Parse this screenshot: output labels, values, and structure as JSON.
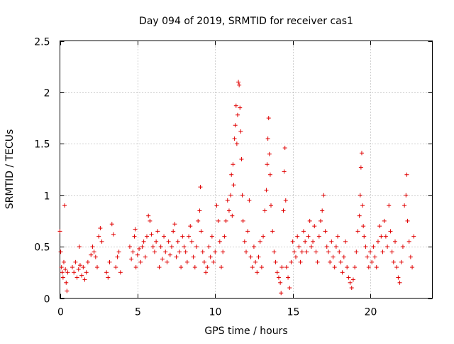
{
  "chart_data": {
    "type": "scatter",
    "title": "Day 094 of 2019, SRMTID for receiver cas1",
    "xlabel": "GPS time / hours",
    "ylabel": "SRMTID / TECUs",
    "xlim": [
      0,
      24
    ],
    "ylim": [
      0,
      2.5
    ],
    "xticks": [
      0,
      5,
      10,
      15,
      20
    ],
    "xtick_labels": [
      "0",
      "5",
      "10",
      "15",
      "20"
    ],
    "yticks": [
      0,
      0.5,
      1,
      1.5,
      2,
      2.5
    ],
    "ytick_labels": [
      "0",
      "0.5",
      "1",
      "1.5",
      "2",
      "2.5"
    ],
    "grid": true,
    "marker": "+",
    "marker_color": "#e00000",
    "series": [
      {
        "name": "SRMTID",
        "points": [
          [
            0.0,
            0.65
          ],
          [
            0.05,
            0.45
          ],
          [
            0.1,
            0.3
          ],
          [
            0.15,
            0.25
          ],
          [
            0.2,
            0.2
          ],
          [
            0.25,
            0.35
          ],
          [
            0.3,
            0.9
          ],
          [
            0.35,
            0.28
          ],
          [
            0.4,
            0.15
          ],
          [
            0.45,
            0.07
          ],
          [
            0.5,
            0.25
          ],
          [
            0.8,
            0.3
          ],
          [
            0.9,
            0.25
          ],
          [
            1.0,
            0.35
          ],
          [
            1.1,
            0.2
          ],
          [
            1.2,
            0.28
          ],
          [
            1.25,
            0.5
          ],
          [
            1.3,
            0.32
          ],
          [
            1.4,
            0.22
          ],
          [
            1.5,
            0.3
          ],
          [
            1.6,
            0.18
          ],
          [
            1.7,
            0.25
          ],
          [
            1.8,
            0.35
          ],
          [
            2.0,
            0.42
          ],
          [
            2.1,
            0.5
          ],
          [
            2.2,
            0.45
          ],
          [
            2.3,
            0.4
          ],
          [
            2.4,
            0.3
          ],
          [
            2.5,
            0.6
          ],
          [
            2.6,
            0.68
          ],
          [
            2.7,
            0.55
          ],
          [
            3.0,
            0.25
          ],
          [
            3.1,
            0.2
          ],
          [
            3.2,
            0.35
          ],
          [
            3.35,
            0.72
          ],
          [
            3.45,
            0.62
          ],
          [
            3.6,
            0.3
          ],
          [
            3.7,
            0.4
          ],
          [
            3.8,
            0.45
          ],
          [
            3.9,
            0.25
          ],
          [
            4.5,
            0.5
          ],
          [
            4.6,
            0.38
          ],
          [
            4.7,
            0.45
          ],
          [
            4.8,
            0.6
          ],
          [
            4.85,
            0.67
          ],
          [
            4.9,
            0.3
          ],
          [
            5.0,
            0.42
          ],
          [
            5.1,
            0.48
          ],
          [
            5.2,
            0.35
          ],
          [
            5.3,
            0.5
          ],
          [
            5.4,
            0.55
          ],
          [
            5.5,
            0.4
          ],
          [
            5.6,
            0.6
          ],
          [
            5.7,
            0.8
          ],
          [
            5.8,
            0.75
          ],
          [
            5.9,
            0.62
          ],
          [
            6.0,
            0.5
          ],
          [
            6.1,
            0.45
          ],
          [
            6.2,
            0.55
          ],
          [
            6.3,
            0.65
          ],
          [
            6.4,
            0.3
          ],
          [
            6.5,
            0.5
          ],
          [
            6.6,
            0.38
          ],
          [
            6.7,
            0.6
          ],
          [
            6.8,
            0.45
          ],
          [
            6.9,
            0.35
          ],
          [
            7.0,
            0.55
          ],
          [
            7.1,
            0.42
          ],
          [
            7.2,
            0.5
          ],
          [
            7.3,
            0.65
          ],
          [
            7.4,
            0.72
          ],
          [
            7.5,
            0.4
          ],
          [
            7.6,
            0.55
          ],
          [
            7.7,
            0.45
          ],
          [
            7.8,
            0.3
          ],
          [
            7.9,
            0.6
          ],
          [
            8.0,
            0.5
          ],
          [
            8.1,
            0.45
          ],
          [
            8.2,
            0.35
          ],
          [
            8.3,
            0.6
          ],
          [
            8.4,
            0.7
          ],
          [
            8.5,
            0.55
          ],
          [
            8.6,
            0.4
          ],
          [
            8.7,
            0.3
          ],
          [
            8.8,
            0.5
          ],
          [
            8.9,
            0.75
          ],
          [
            9.0,
            0.85
          ],
          [
            9.05,
            1.08
          ],
          [
            9.1,
            0.65
          ],
          [
            9.2,
            0.45
          ],
          [
            9.3,
            0.35
          ],
          [
            9.4,
            0.25
          ],
          [
            9.5,
            0.3
          ],
          [
            9.6,
            0.5
          ],
          [
            9.7,
            0.4
          ],
          [
            9.8,
            0.6
          ],
          [
            9.9,
            0.35
          ],
          [
            10.0,
            0.45
          ],
          [
            10.1,
            0.9
          ],
          [
            10.2,
            0.75
          ],
          [
            10.3,
            0.55
          ],
          [
            10.4,
            0.3
          ],
          [
            10.5,
            0.45
          ],
          [
            10.6,
            0.6
          ],
          [
            10.7,
            0.75
          ],
          [
            10.8,
            0.95
          ],
          [
            10.9,
            0.85
          ],
          [
            11.0,
            1.0
          ],
          [
            11.05,
            1.2
          ],
          [
            11.1,
            0.8
          ],
          [
            11.15,
            1.3
          ],
          [
            11.2,
            1.1
          ],
          [
            11.25,
            1.55
          ],
          [
            11.3,
            1.68
          ],
          [
            11.35,
            1.87
          ],
          [
            11.4,
            1.5
          ],
          [
            11.45,
            1.78
          ],
          [
            11.5,
            2.1
          ],
          [
            11.55,
            2.07
          ],
          [
            11.6,
            1.85
          ],
          [
            11.65,
            1.62
          ],
          [
            11.7,
            1.35
          ],
          [
            11.75,
            1.0
          ],
          [
            11.8,
            0.75
          ],
          [
            11.9,
            0.55
          ],
          [
            12.0,
            0.45
          ],
          [
            12.1,
            0.65
          ],
          [
            12.2,
            0.95
          ],
          [
            12.3,
            0.4
          ],
          [
            12.4,
            0.3
          ],
          [
            12.5,
            0.5
          ],
          [
            12.6,
            0.35
          ],
          [
            12.7,
            0.25
          ],
          [
            12.8,
            0.4
          ],
          [
            12.9,
            0.55
          ],
          [
            13.0,
            0.3
          ],
          [
            13.1,
            0.6
          ],
          [
            13.2,
            0.85
          ],
          [
            13.3,
            1.05
          ],
          [
            13.35,
            1.3
          ],
          [
            13.4,
            1.55
          ],
          [
            13.45,
            1.75
          ],
          [
            13.5,
            1.4
          ],
          [
            13.55,
            1.2
          ],
          [
            13.6,
            0.9
          ],
          [
            13.7,
            0.65
          ],
          [
            13.8,
            0.45
          ],
          [
            13.9,
            0.35
          ],
          [
            14.0,
            0.25
          ],
          [
            14.1,
            0.2
          ],
          [
            14.2,
            0.15
          ],
          [
            14.25,
            0.05
          ],
          [
            14.3,
            0.3
          ],
          [
            14.4,
            0.85
          ],
          [
            14.45,
            1.23
          ],
          [
            14.5,
            1.46
          ],
          [
            14.55,
            0.95
          ],
          [
            14.6,
            0.3
          ],
          [
            14.7,
            0.2
          ],
          [
            14.8,
            0.1
          ],
          [
            14.9,
            0.35
          ],
          [
            15.0,
            0.55
          ],
          [
            15.1,
            0.45
          ],
          [
            15.2,
            0.4
          ],
          [
            15.3,
            0.6
          ],
          [
            15.4,
            0.5
          ],
          [
            15.5,
            0.35
          ],
          [
            15.6,
            0.45
          ],
          [
            15.7,
            0.65
          ],
          [
            15.8,
            0.55
          ],
          [
            15.9,
            0.45
          ],
          [
            16.0,
            0.6
          ],
          [
            16.1,
            0.75
          ],
          [
            16.2,
            0.5
          ],
          [
            16.3,
            0.55
          ],
          [
            16.4,
            0.7
          ],
          [
            16.5,
            0.45
          ],
          [
            16.6,
            0.35
          ],
          [
            16.7,
            0.6
          ],
          [
            16.8,
            0.75
          ],
          [
            16.9,
            0.85
          ],
          [
            17.0,
            1.0
          ],
          [
            17.1,
            0.65
          ],
          [
            17.2,
            0.5
          ],
          [
            17.3,
            0.45
          ],
          [
            17.4,
            0.35
          ],
          [
            17.5,
            0.55
          ],
          [
            17.6,
            0.4
          ],
          [
            17.7,
            0.3
          ],
          [
            17.8,
            0.5
          ],
          [
            17.9,
            0.6
          ],
          [
            18.0,
            0.45
          ],
          [
            18.1,
            0.35
          ],
          [
            18.2,
            0.25
          ],
          [
            18.3,
            0.4
          ],
          [
            18.4,
            0.55
          ],
          [
            18.5,
            0.3
          ],
          [
            18.6,
            0.2
          ],
          [
            18.7,
            0.15
          ],
          [
            18.8,
            0.1
          ],
          [
            18.9,
            0.18
          ],
          [
            19.0,
            0.3
          ],
          [
            19.1,
            0.45
          ],
          [
            19.2,
            0.65
          ],
          [
            19.3,
            0.8
          ],
          [
            19.35,
            1.0
          ],
          [
            19.4,
            1.27
          ],
          [
            19.45,
            1.41
          ],
          [
            19.5,
            0.9
          ],
          [
            19.55,
            0.7
          ],
          [
            19.6,
            0.6
          ],
          [
            19.7,
            0.5
          ],
          [
            19.8,
            0.4
          ],
          [
            19.9,
            0.3
          ],
          [
            20.0,
            0.45
          ],
          [
            20.1,
            0.35
          ],
          [
            20.2,
            0.5
          ],
          [
            20.3,
            0.4
          ],
          [
            20.4,
            0.3
          ],
          [
            20.5,
            0.55
          ],
          [
            20.6,
            0.7
          ],
          [
            20.7,
            0.6
          ],
          [
            20.8,
            0.45
          ],
          [
            20.9,
            0.75
          ],
          [
            21.0,
            0.6
          ],
          [
            21.1,
            0.5
          ],
          [
            21.2,
            0.9
          ],
          [
            21.3,
            0.65
          ],
          [
            21.4,
            0.45
          ],
          [
            21.5,
            0.35
          ],
          [
            21.6,
            0.55
          ],
          [
            21.7,
            0.3
          ],
          [
            21.8,
            0.2
          ],
          [
            21.9,
            0.15
          ],
          [
            22.0,
            0.35
          ],
          [
            22.1,
            0.5
          ],
          [
            22.2,
            0.9
          ],
          [
            22.3,
            1.0
          ],
          [
            22.35,
            1.2
          ],
          [
            22.4,
            0.75
          ],
          [
            22.5,
            0.55
          ],
          [
            22.6,
            0.4
          ],
          [
            22.7,
            0.3
          ],
          [
            22.8,
            0.6
          ]
        ]
      }
    ]
  }
}
